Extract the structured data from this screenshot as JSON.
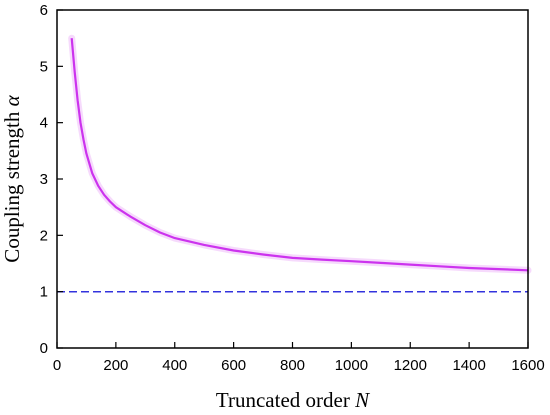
{
  "chart_data": {
    "type": "line",
    "xlabel": "Truncated order",
    "xlabel_symbol": "N",
    "ylabel": "Coupling strength",
    "ylabel_symbol": "α",
    "xlim": [
      0,
      1600
    ],
    "ylim": [
      0,
      6
    ],
    "xticks": [
      0,
      200,
      400,
      600,
      800,
      1000,
      1200,
      1400,
      1600
    ],
    "yticks": [
      0,
      1,
      2,
      3,
      4,
      5,
      6
    ],
    "grid": false,
    "series": [
      {
        "style": "solid",
        "color": "#cc33ee",
        "x": [
          50,
          60,
          70,
          80,
          90,
          100,
          120,
          140,
          160,
          180,
          200,
          250,
          300,
          350,
          400,
          500,
          600,
          700,
          800,
          900,
          1000,
          1100,
          1200,
          1300,
          1400,
          1500,
          1600
        ],
        "y": [
          5.5,
          4.9,
          4.4,
          4.0,
          3.7,
          3.45,
          3.1,
          2.88,
          2.72,
          2.6,
          2.5,
          2.33,
          2.18,
          2.05,
          1.95,
          1.83,
          1.73,
          1.66,
          1.6,
          1.57,
          1.54,
          1.51,
          1.48,
          1.45,
          1.42,
          1.4,
          1.38
        ]
      },
      {
        "style": "dashed",
        "color": "#3333dd",
        "x": [
          0,
          1600
        ],
        "y": [
          1,
          1
        ]
      }
    ]
  }
}
